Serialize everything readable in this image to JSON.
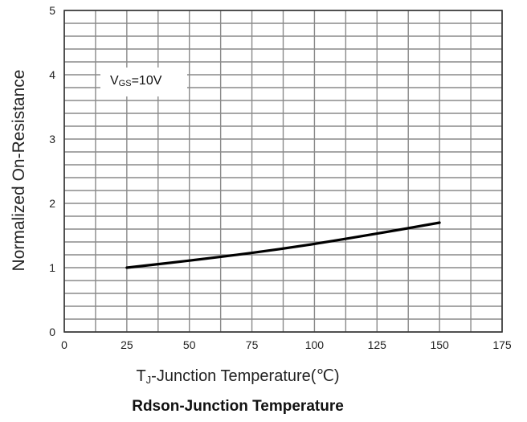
{
  "chart_data": {
    "type": "line",
    "title": "Rdson-Junction Temperature",
    "xlabel_main": "T",
    "xlabel_sub": "J",
    "xlabel_rest": "-Junction Temperature(℃)",
    "ylabel": "Normalized On-Resistance",
    "xlim": [
      0,
      175
    ],
    "ylim": [
      0,
      5
    ],
    "x_ticks": [
      0,
      25,
      50,
      75,
      100,
      125,
      150,
      175
    ],
    "y_ticks": [
      0,
      1,
      2,
      3,
      4,
      5
    ],
    "grid": true,
    "annotation": {
      "main": "V",
      "sub": "GS",
      "rest": "=10V"
    },
    "series": [
      {
        "x": [
          25,
          50,
          75,
          100,
          125,
          150
        ],
        "values": [
          1.0,
          1.11,
          1.23,
          1.37,
          1.53,
          1.7
        ],
        "color": "#000000"
      }
    ]
  }
}
